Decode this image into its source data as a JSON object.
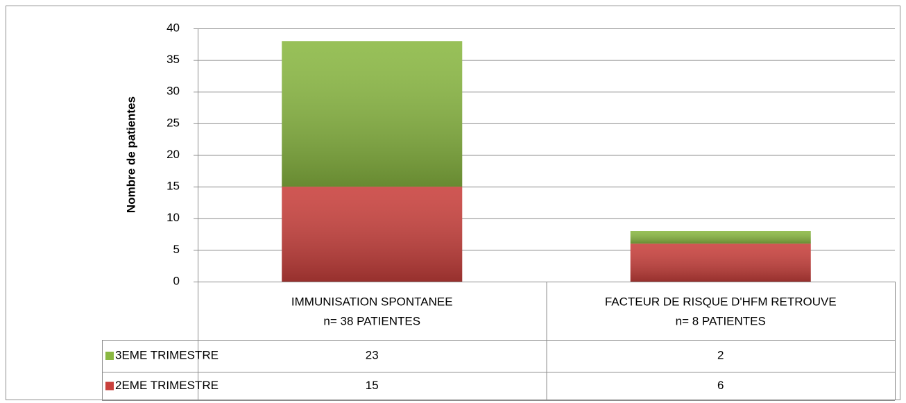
{
  "chart_data": {
    "type": "stacked_bar",
    "y_label": "Nombre de patientes",
    "categories": [
      [
        "IMMUNISATION SPONTANEE",
        "n= 38 PATIENTES"
      ],
      [
        "FACTEUR DE RISQUE D'HFM RETROUVE",
        "n= 8 PATIENTES"
      ]
    ],
    "series": [
      {
        "name": "2EME TRIMESTRE",
        "color": "#c9403c",
        "values": [
          15,
          6
        ]
      },
      {
        "name": "3EME TRIMESTRE",
        "color": "#8ab842",
        "values": [
          23,
          2
        ]
      }
    ],
    "ylim": [
      0,
      40
    ],
    "yticks": [
      0,
      5,
      10,
      15,
      20,
      25,
      30,
      35,
      40
    ],
    "grid": true
  }
}
